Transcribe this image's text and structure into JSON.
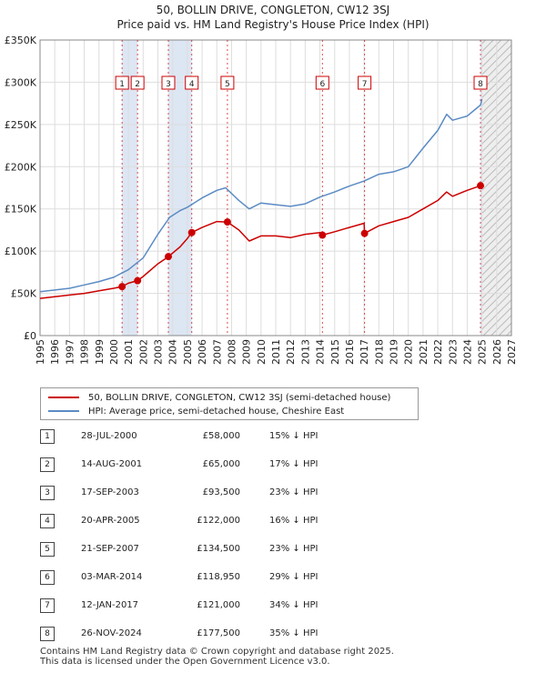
{
  "title_line1": "50, BOLLIN DRIVE, CONGLETON, CW12 3SJ",
  "title_line2": "Price paid vs. HM Land Registry's House Price Index (HPI)",
  "legend": [
    {
      "label": "50, BOLLIN DRIVE, CONGLETON, CW12 3SJ (semi-detached house)",
      "color": "#cc0000"
    },
    {
      "label": "HPI: Average price, semi-detached house, Cheshire East",
      "color": "#5b8bc4"
    }
  ],
  "sales": [
    {
      "n": "1",
      "date": "28-JUL-2000",
      "price": "£58,000",
      "hpi": "15% ↓ HPI"
    },
    {
      "n": "2",
      "date": "14-AUG-2001",
      "price": "£65,000",
      "hpi": "17% ↓ HPI"
    },
    {
      "n": "3",
      "date": "17-SEP-2003",
      "price": "£93,500",
      "hpi": "23% ↓ HPI"
    },
    {
      "n": "4",
      "date": "20-APR-2005",
      "price": "£122,000",
      "hpi": "16% ↓ HPI"
    },
    {
      "n": "5",
      "date": "21-SEP-2007",
      "price": "£134,500",
      "hpi": "23% ↓ HPI"
    },
    {
      "n": "6",
      "date": "03-MAR-2014",
      "price": "£118,950",
      "hpi": "29% ↓ HPI"
    },
    {
      "n": "7",
      "date": "12-JAN-2017",
      "price": "£121,000",
      "hpi": "34% ↓ HPI"
    },
    {
      "n": "8",
      "date": "26-NOV-2024",
      "price": "£177,500",
      "hpi": "35% ↓ HPI"
    }
  ],
  "footer_line1": "Contains HM Land Registry data © Crown copyright and database right 2025.",
  "footer_line2": "This data is licensed under the Open Government Licence v3.0.",
  "chart_data": {
    "type": "line",
    "title": "50, BOLLIN DRIVE, CONGLETON, CW12 3SJ",
    "subtitle": "Price paid vs. HM Land Registry's House Price Index (HPI)",
    "xlabel": "",
    "ylabel": "",
    "xlim": [
      1995,
      2027
    ],
    "ylim": [
      0,
      350000
    ],
    "x_ticks": [
      1995,
      1996,
      1997,
      1998,
      1999,
      2000,
      2001,
      2002,
      2003,
      2004,
      2005,
      2006,
      2007,
      2008,
      2009,
      2010,
      2011,
      2012,
      2013,
      2014,
      2015,
      2016,
      2017,
      2018,
      2019,
      2020,
      2021,
      2022,
      2023,
      2024,
      2025,
      2026,
      2027
    ],
    "y_ticks": [
      {
        "value": 0,
        "label": "£0"
      },
      {
        "value": 50000,
        "label": "£50K"
      },
      {
        "value": 100000,
        "label": "£100K"
      },
      {
        "value": 150000,
        "label": "£150K"
      },
      {
        "value": 200000,
        "label": "£200K"
      },
      {
        "value": 250000,
        "label": "£250K"
      },
      {
        "value": 300000,
        "label": "£300K"
      },
      {
        "value": 350000,
        "label": "£350K"
      }
    ],
    "grid": true,
    "forecast_from": 2025.0,
    "sale_spans": [
      [
        2000.57,
        2001.62
      ],
      [
        2003.71,
        2005.3
      ],
      [
        2024.9,
        2025.0
      ]
    ],
    "series": [
      {
        "name": "HPI: Average price, semi-detached house, Cheshire East",
        "color": "#5b8bc4",
        "x": [
          1995,
          1996,
          1997,
          1998,
          1999,
          2000,
          2001,
          2002,
          2003,
          2003.8,
          2004.5,
          2005,
          2006,
          2007,
          2007.6,
          2008.5,
          2009.2,
          2010,
          2011,
          2012,
          2013,
          2014,
          2015,
          2016,
          2017,
          2018,
          2019,
          2020,
          2021,
          2022,
          2022.6,
          2023,
          2024,
          2024.9,
          2025.0
        ],
        "y": [
          52000,
          54000,
          56000,
          60000,
          64000,
          69000,
          78000,
          92000,
          120000,
          140000,
          148000,
          152000,
          163000,
          172000,
          175000,
          160000,
          150000,
          157000,
          155000,
          153000,
          156000,
          164000,
          170000,
          177000,
          183000,
          191000,
          194000,
          200000,
          222000,
          243000,
          262000,
          255000,
          260000,
          273000,
          280000
        ]
      },
      {
        "name": "50, BOLLIN DRIVE, CONGLETON, CW12 3SJ (semi-detached house)",
        "color": "#cc0000",
        "x": [
          1995,
          1996,
          1997,
          1998,
          1999,
          2000,
          2000.57,
          2001,
          2001.62,
          2002,
          2003,
          2003.71,
          2004.5,
          2005,
          2005.3,
          2006,
          2007,
          2007.72,
          2008.5,
          2009.2,
          2010,
          2011,
          2012,
          2013,
          2014,
          2014.17,
          2015,
          2016,
          2017,
          2017.03,
          2018,
          2019,
          2020,
          2021,
          2022,
          2022.6,
          2023,
          2024,
          2024.9
        ],
        "y": [
          44000,
          46000,
          48000,
          50000,
          53000,
          56000,
          58000,
          62000,
          65000,
          70000,
          85000,
          93500,
          105000,
          115000,
          122000,
          128000,
          135000,
          134500,
          125000,
          112000,
          118000,
          118000,
          116000,
          120000,
          122000,
          118950,
          123000,
          128000,
          133000,
          121000,
          130000,
          135000,
          140000,
          150000,
          160000,
          170000,
          165000,
          172000,
          177500
        ]
      }
    ],
    "sales_points": [
      {
        "label": "1",
        "x": 2000.57,
        "y": 58000
      },
      {
        "label": "2",
        "x": 2001.62,
        "y": 65000
      },
      {
        "label": "3",
        "x": 2003.71,
        "y": 93500
      },
      {
        "label": "4",
        "x": 2005.3,
        "y": 122000
      },
      {
        "label": "5",
        "x": 2007.72,
        "y": 134500
      },
      {
        "label": "6",
        "x": 2014.17,
        "y": 118950
      },
      {
        "label": "7",
        "x": 2017.03,
        "y": 121000
      },
      {
        "label": "8",
        "x": 2024.9,
        "y": 177500
      }
    ]
  }
}
